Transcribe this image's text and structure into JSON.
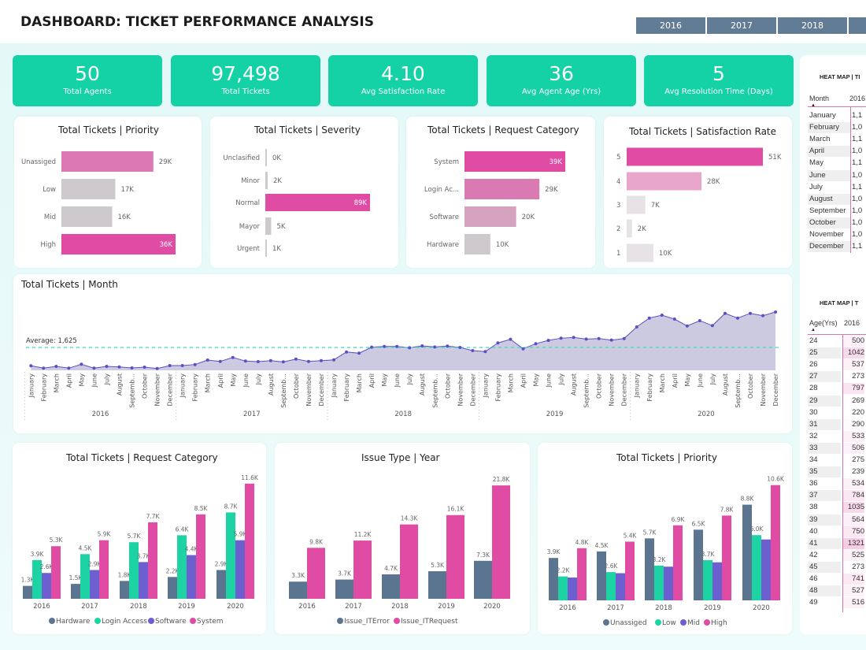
{
  "header": {
    "title": "DASHBOARD: TICKET PERFORMANCE ANALYSIS",
    "year_slicer": [
      "2016",
      "2017",
      "2018",
      ""
    ]
  },
  "kpis": [
    {
      "value": "50",
      "label": "Total Agents"
    },
    {
      "value": "97,498",
      "label": "Total Tickets"
    },
    {
      "value": "4.10",
      "label": "Avg Satisfaction Rate"
    },
    {
      "value": "36",
      "label": "Avg Agent Age (Yrs)"
    },
    {
      "value": "5",
      "label": "Avg Resolution Time (Days)"
    }
  ],
  "heatmap_month": {
    "title": "HEAT MAP | TI",
    "col_header": "Month",
    "year_header": "2016",
    "sort_icon": "sort-ascending-icon",
    "rows": [
      {
        "k": "January",
        "v": "1,1"
      },
      {
        "k": "February",
        "v": "1,0"
      },
      {
        "k": "March",
        "v": "1,1"
      },
      {
        "k": "April",
        "v": "1,0"
      },
      {
        "k": "May",
        "v": "1,1"
      },
      {
        "k": "June",
        "v": "1,0"
      },
      {
        "k": "July",
        "v": "1,1"
      },
      {
        "k": "August",
        "v": "1,0"
      },
      {
        "k": "September",
        "v": "1,0"
      },
      {
        "k": "October",
        "v": "1,0"
      },
      {
        "k": "November",
        "v": "1,0"
      },
      {
        "k": "December",
        "v": "1,1"
      }
    ]
  },
  "heatmap_age": {
    "title": "HEAT MAP | T",
    "col_header": "Age(Yrs)",
    "year_header": "2016",
    "sort_icon": "sort-ascending-icon",
    "rows": [
      {
        "k": "24",
        "v": "500"
      },
      {
        "k": "25",
        "v": "1042"
      },
      {
        "k": "26",
        "v": "537"
      },
      {
        "k": "27",
        "v": "273"
      },
      {
        "k": "28",
        "v": "797"
      },
      {
        "k": "29",
        "v": "269"
      },
      {
        "k": "30",
        "v": "220"
      },
      {
        "k": "31",
        "v": "290"
      },
      {
        "k": "32",
        "v": "533"
      },
      {
        "k": "33",
        "v": "506"
      },
      {
        "k": "34",
        "v": "275"
      },
      {
        "k": "35",
        "v": "239"
      },
      {
        "k": "36",
        "v": "534"
      },
      {
        "k": "37",
        "v": "784"
      },
      {
        "k": "38",
        "v": "1035"
      },
      {
        "k": "39",
        "v": "564"
      },
      {
        "k": "40",
        "v": "750"
      },
      {
        "k": "41",
        "v": "1321"
      },
      {
        "k": "42",
        "v": "525"
      },
      {
        "k": "45",
        "v": "273"
      },
      {
        "k": "46",
        "v": "741"
      },
      {
        "k": "48",
        "v": "527"
      },
      {
        "k": "49",
        "v": "516"
      }
    ],
    "heat_color": "#e04ca3"
  },
  "chart_data": [
    {
      "type": "bar",
      "orientation": "horizontal",
      "title": "Total Tickets | Priority",
      "categories": [
        "Unassiged",
        "Low",
        "Mid",
        "High"
      ],
      "values": [
        29000,
        17000,
        16000,
        36000
      ],
      "data_labels": [
        "29K",
        "17K",
        "16K",
        "36K"
      ],
      "colors": [
        "#dc78b3",
        "#cdc9cd",
        "#cdc9cd",
        "#e04ca3"
      ]
    },
    {
      "type": "bar",
      "orientation": "horizontal",
      "title": "Total Tickets | Severity",
      "categories": [
        "Unclasified",
        "Minor",
        "Normal",
        "Mayor",
        "Urgent"
      ],
      "values": [
        0,
        2000,
        89000,
        5000,
        1000
      ],
      "data_labels": [
        "0K",
        "2K",
        "89K",
        "5K",
        "1K"
      ],
      "colors": [
        "#cdc9cd",
        "#cdc9cd",
        "#e04ca3",
        "#cdc9cd",
        "#cdc9cd"
      ]
    },
    {
      "type": "bar",
      "orientation": "horizontal",
      "title": "Total Tickets | Request Category",
      "categories": [
        "System",
        "Login Ac...",
        "Software",
        "Hardware"
      ],
      "values": [
        39000,
        29000,
        20000,
        10000
      ],
      "data_labels": [
        "39K",
        "29K",
        "20K",
        "10K"
      ],
      "colors": [
        "#e04ca3",
        "#d97ab2",
        "#d5a2c0",
        "#cdc9cd"
      ]
    },
    {
      "type": "bar",
      "orientation": "horizontal",
      "title": "Total Tickets | Satisfaction Rate",
      "categories": [
        "5",
        "4",
        "3",
        "2",
        "1"
      ],
      "values": [
        51000,
        28000,
        7000,
        2000,
        10000
      ],
      "data_labels": [
        "51K",
        "28K",
        "7K",
        "2K",
        "10K"
      ],
      "colors": [
        "#e04ca3",
        "#e8a6ca",
        "#e6e2e6",
        "#e6e2e6",
        "#e6e2e6"
      ]
    },
    {
      "type": "area",
      "title": "Total Tickets | Month",
      "years": [
        "2016",
        "2017",
        "2018",
        "2019",
        "2020"
      ],
      "months": [
        "January",
        "February",
        "March",
        "April",
        "May",
        "June",
        "July",
        "August",
        "Septemb...",
        "October",
        "November",
        "December"
      ],
      "values": [
        1115,
        1049,
        1099,
        1049,
        1159,
        1049,
        1100,
        1084,
        1056,
        1078,
        1040,
        1121,
        1121,
        1150,
        1275,
        1237,
        1347,
        1246,
        1231,
        1259,
        1224,
        1303,
        1237,
        1259,
        1281,
        1500,
        1465,
        1632,
        1653,
        1653,
        1618,
        1669,
        1640,
        1662,
        1625,
        1537,
        1509,
        1750,
        1851,
        1588,
        1728,
        1822,
        1881,
        1903,
        1859,
        1872,
        1829,
        1872,
        2194,
        2442,
        2523,
        2413,
        2223,
        2370,
        2232,
        2573,
        2442,
        2573,
        2508,
        2611
      ],
      "reference_line": {
        "label": "Average: 1,625",
        "value": 1625,
        "color": "#3fd8b8"
      },
      "line_color": "#5b4fc4",
      "fill_color": "#c9c7de"
    },
    {
      "type": "bar",
      "orientation": "vertical",
      "title": "Total Tickets | Request Category",
      "categories": [
        "2016",
        "2017",
        "2018",
        "2019",
        "2020"
      ],
      "legend": "bottom",
      "series": [
        {
          "name": "Hardware",
          "color": "#5b7590",
          "values": [
            1.3,
            1.5,
            1.8,
            2.2,
            2.9
          ],
          "labels": [
            "1.3K",
            "1.5K",
            "1.8K",
            "2.2K",
            "2.9K"
          ]
        },
        {
          "name": "Login Access",
          "color": "#1ed3a3",
          "values": [
            3.9,
            4.5,
            5.7,
            6.4,
            8.7
          ],
          "labels": [
            "3.9K",
            "4.5K",
            "5.7K",
            "6.4K",
            "8.7K"
          ]
        },
        {
          "name": "Software",
          "color": "#6d5fd0",
          "values": [
            2.6,
            2.9,
            3.7,
            4.4,
            5.9
          ],
          "labels": [
            "2.6K",
            "2.9K",
            "3.7K",
            "4.4K",
            "5.9K"
          ]
        },
        {
          "name": "System",
          "color": "#e04ca3",
          "values": [
            5.3,
            5.9,
            7.7,
            8.5,
            11.6
          ],
          "labels": [
            "5.3K",
            "5.9K",
            "7.7K",
            "8.5K",
            "11.6K"
          ]
        }
      ]
    },
    {
      "type": "bar",
      "orientation": "vertical",
      "title": "Issue Type | Year",
      "categories": [
        "2016",
        "2017",
        "2018",
        "2019",
        "2020"
      ],
      "legend": "bottom",
      "series": [
        {
          "name": "Issue_ITError",
          "color": "#5b7590",
          "values": [
            3.3,
            3.7,
            4.7,
            5.3,
            7.3
          ],
          "labels": [
            "3.3K",
            "3.7K",
            "4.7K",
            "5.3K",
            "7.3K"
          ]
        },
        {
          "name": "Issue_ITRequest",
          "color": "#e04ca3",
          "values": [
            9.8,
            11.2,
            14.3,
            16.1,
            21.8
          ],
          "labels": [
            "9.8K",
            "11.2K",
            "14.3K",
            "16.1K",
            "21.8K"
          ]
        }
      ]
    },
    {
      "type": "bar",
      "orientation": "vertical",
      "title": "Total Tickets | Priority",
      "categories": [
        "2016",
        "2017",
        "2018",
        "2019",
        "2020"
      ],
      "legend": "bottom",
      "series": [
        {
          "name": "Unassiged",
          "color": "#5b7590",
          "values": [
            3.9,
            4.5,
            5.7,
            6.5,
            8.8
          ],
          "labels": [
            "3.9K",
            "4.5K",
            "5.7K",
            "6.5K",
            "8.8K"
          ]
        },
        {
          "name": "Low",
          "color": "#1ed3a3",
          "values": [
            2.2,
            2.6,
            3.2,
            3.7,
            6.0
          ],
          "labels": [
            "2.2K",
            "2.6K",
            "3.2K",
            "3.7K",
            "6.0K"
          ]
        },
        {
          "name": "Mid",
          "color": "#6d5fd0",
          "values": [
            2.1,
            2.5,
            3.1,
            3.5,
            5.6
          ],
          "labels": [
            "",
            "",
            "",
            "",
            ""
          ]
        },
        {
          "name": "High",
          "color": "#e04ca3",
          "values": [
            4.8,
            5.4,
            6.9,
            7.8,
            10.6
          ],
          "labels": [
            "4.8K",
            "5.4K",
            "6.9K",
            "7.8K",
            "10.6K"
          ]
        }
      ]
    }
  ]
}
